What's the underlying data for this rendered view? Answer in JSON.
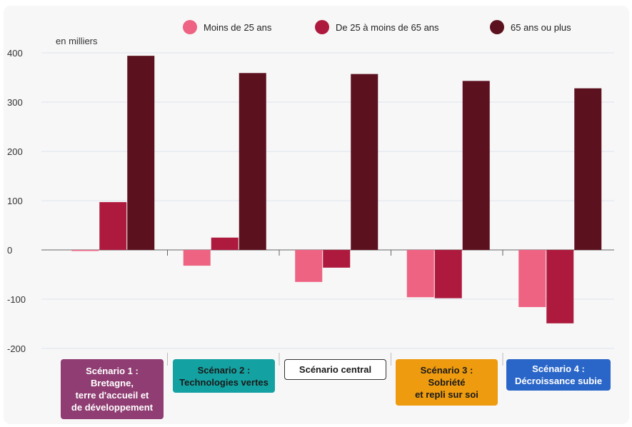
{
  "chart_data": {
    "type": "bar",
    "unit_label": "en milliers",
    "ylim": [
      -200,
      400
    ],
    "yticks": [
      400,
      300,
      200,
      100,
      0,
      -100,
      -200
    ],
    "grid": true,
    "legend_position": "top",
    "categories": [
      "Scénario 1 :\nBretagne,\nterre d'accueil et\nde développement",
      "Scénario 2 :\nTechnologies vertes",
      "Scénario central",
      "Scénario 3 :\nSobriété\net repli sur soi",
      "Scénario 4 :\nDécroissance subie"
    ],
    "category_colors": [
      "#8f3d72",
      "#14a1a1",
      "#ffffff",
      "#ee9b0f",
      "#2a66c8"
    ],
    "category_text_colors": [
      "#ffffff",
      "#1a1a1a",
      "#1a1a1a",
      "#1a1a1a",
      "#ffffff"
    ],
    "series": [
      {
        "name": "Moins de 25 ans",
        "color": "#ee6282",
        "values": [
          -2,
          -32,
          -65,
          -96,
          -116
        ]
      },
      {
        "name": "De 25 à moins de 65 ans",
        "color": "#ad1a3e",
        "values": [
          97,
          25,
          -36,
          -98,
          -149
        ]
      },
      {
        "name": "65 ans ou plus",
        "color": "#5c111f",
        "values": [
          394,
          359,
          357,
          343,
          328
        ]
      }
    ]
  }
}
